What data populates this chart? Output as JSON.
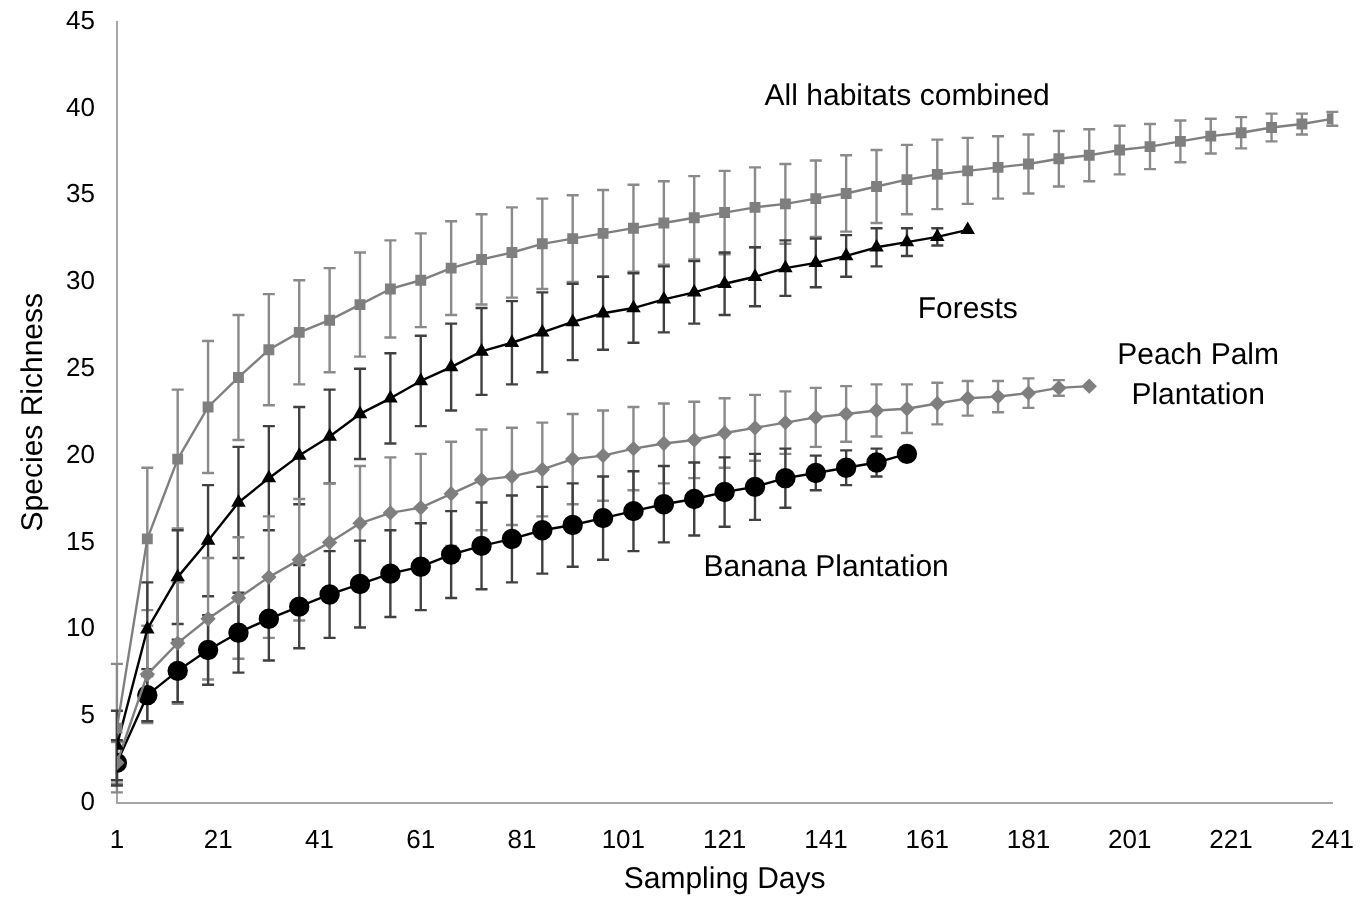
{
  "chart_data": {
    "type": "line",
    "xlabel": "Sampling Days",
    "ylabel": "Species Richness",
    "xlim": [
      1,
      241
    ],
    "xticks": [
      1,
      21,
      41,
      61,
      81,
      101,
      121,
      141,
      161,
      181,
      201,
      221,
      241
    ],
    "ylim": [
      0,
      45
    ],
    "yticks": [
      0,
      5,
      10,
      15,
      20,
      25,
      30,
      35,
      40,
      45
    ],
    "grid": false,
    "legend": false,
    "series": [
      {
        "name": "All habitats combined",
        "color": "#7f7f7f",
        "marker": "square",
        "x": [
          1,
          7,
          13,
          19,
          25,
          31,
          37,
          43,
          49,
          55,
          61,
          67,
          73,
          79,
          85,
          91,
          97,
          103,
          109,
          115,
          121,
          127,
          133,
          139,
          145,
          151,
          157,
          163,
          169,
          175,
          181,
          187,
          193,
          199,
          205,
          211,
          217,
          223,
          229,
          235,
          241
        ],
        "values": [
          4.3,
          15.2,
          19.8,
          22.8,
          24.5,
          26.1,
          27.1,
          27.8,
          28.7,
          29.6,
          30.1,
          30.8,
          31.3,
          31.7,
          32.2,
          32.5,
          32.8,
          33.1,
          33.4,
          33.7,
          34.0,
          34.3,
          34.5,
          34.8,
          35.1,
          35.5,
          35.9,
          36.2,
          36.4,
          36.6,
          36.8,
          37.1,
          37.3,
          37.6,
          37.8,
          38.1,
          38.4,
          38.6,
          38.9,
          39.1,
          39.4
        ],
        "errors": [
          3.7,
          4.1,
          4.0,
          3.8,
          3.6,
          3.2,
          3.0,
          3.0,
          3.0,
          2.8,
          2.7,
          2.7,
          2.6,
          2.6,
          2.6,
          2.5,
          2.5,
          2.5,
          2.4,
          2.4,
          2.4,
          2.3,
          2.3,
          2.2,
          2.2,
          2.1,
          2.0,
          2.0,
          1.9,
          1.8,
          1.7,
          1.6,
          1.5,
          1.4,
          1.3,
          1.2,
          1.0,
          0.9,
          0.8,
          0.6,
          0.4
        ]
      },
      {
        "name": "Forests",
        "color": "#000000",
        "marker": "triangle",
        "x": [
          1,
          7,
          13,
          19,
          25,
          31,
          37,
          43,
          49,
          55,
          61,
          67,
          73,
          79,
          85,
          91,
          97,
          103,
          109,
          115,
          121,
          127,
          133,
          139,
          145,
          151,
          157,
          163,
          169
        ],
        "values": [
          3.3,
          10.0,
          13.0,
          15.1,
          17.3,
          18.7,
          20.0,
          21.1,
          22.4,
          23.3,
          24.3,
          25.1,
          26.0,
          26.5,
          27.1,
          27.7,
          28.2,
          28.5,
          29.0,
          29.4,
          29.9,
          30.3,
          30.8,
          31.1,
          31.5,
          32.0,
          32.3,
          32.6,
          33.0
        ],
        "errors": [
          2.0,
          2.7,
          2.7,
          3.2,
          3.2,
          3.0,
          2.8,
          2.7,
          2.6,
          2.6,
          2.6,
          2.5,
          2.5,
          2.4,
          2.3,
          2.2,
          2.1,
          2.0,
          1.9,
          1.8,
          1.8,
          1.7,
          1.6,
          1.4,
          1.2,
          1.1,
          0.8,
          0.5,
          null
        ]
      },
      {
        "name": "Peach Palm Plantation",
        "color": "#7f7f7f",
        "marker": "diamond",
        "x": [
          1,
          7,
          13,
          19,
          25,
          31,
          37,
          43,
          49,
          55,
          61,
          67,
          73,
          79,
          85,
          91,
          97,
          103,
          109,
          115,
          121,
          127,
          133,
          139,
          145,
          151,
          157,
          163,
          169,
          175,
          181,
          187,
          193
        ],
        "values": [
          2.3,
          7.4,
          9.2,
          10.6,
          11.8,
          13.0,
          14.0,
          15.0,
          16.1,
          16.7,
          17.0,
          17.8,
          18.6,
          18.8,
          19.2,
          19.8,
          20.0,
          20.4,
          20.7,
          20.9,
          21.3,
          21.6,
          21.9,
          22.2,
          22.4,
          22.6,
          22.7,
          23.0,
          23.3,
          23.4,
          23.6,
          23.9,
          24.0
        ],
        "errors": [
          1.2,
          2.8,
          3.5,
          3.5,
          3.5,
          3.5,
          3.5,
          3.4,
          3.3,
          3.2,
          3.1,
          3.0,
          2.9,
          2.8,
          2.7,
          2.6,
          2.6,
          2.4,
          2.3,
          2.2,
          2.0,
          1.9,
          1.8,
          1.7,
          1.6,
          1.5,
          1.4,
          1.2,
          1.0,
          0.9,
          0.85,
          0.45,
          null
        ]
      },
      {
        "name": "Banana Plantation",
        "color": "#000000",
        "marker": "circle",
        "x": [
          1,
          7,
          13,
          19,
          25,
          31,
          37,
          43,
          49,
          55,
          61,
          67,
          73,
          79,
          85,
          91,
          97,
          103,
          109,
          115,
          121,
          127,
          133,
          139,
          145,
          151,
          157
        ],
        "values": [
          2.3,
          6.2,
          7.6,
          8.8,
          9.8,
          10.6,
          11.3,
          12.0,
          12.6,
          13.2,
          13.6,
          14.3,
          14.8,
          15.2,
          15.7,
          16.0,
          16.4,
          16.8,
          17.2,
          17.5,
          17.9,
          18.2,
          18.7,
          19.0,
          19.3,
          19.6,
          20.1
        ],
        "errors": [
          1.3,
          1.5,
          1.8,
          2.0,
          2.3,
          2.4,
          2.4,
          2.5,
          2.5,
          2.5,
          2.5,
          2.5,
          2.5,
          2.5,
          2.5,
          2.4,
          2.4,
          2.3,
          2.2,
          2.1,
          2.0,
          1.9,
          1.7,
          1.0,
          1.0,
          0.8,
          null
        ]
      }
    ]
  }
}
